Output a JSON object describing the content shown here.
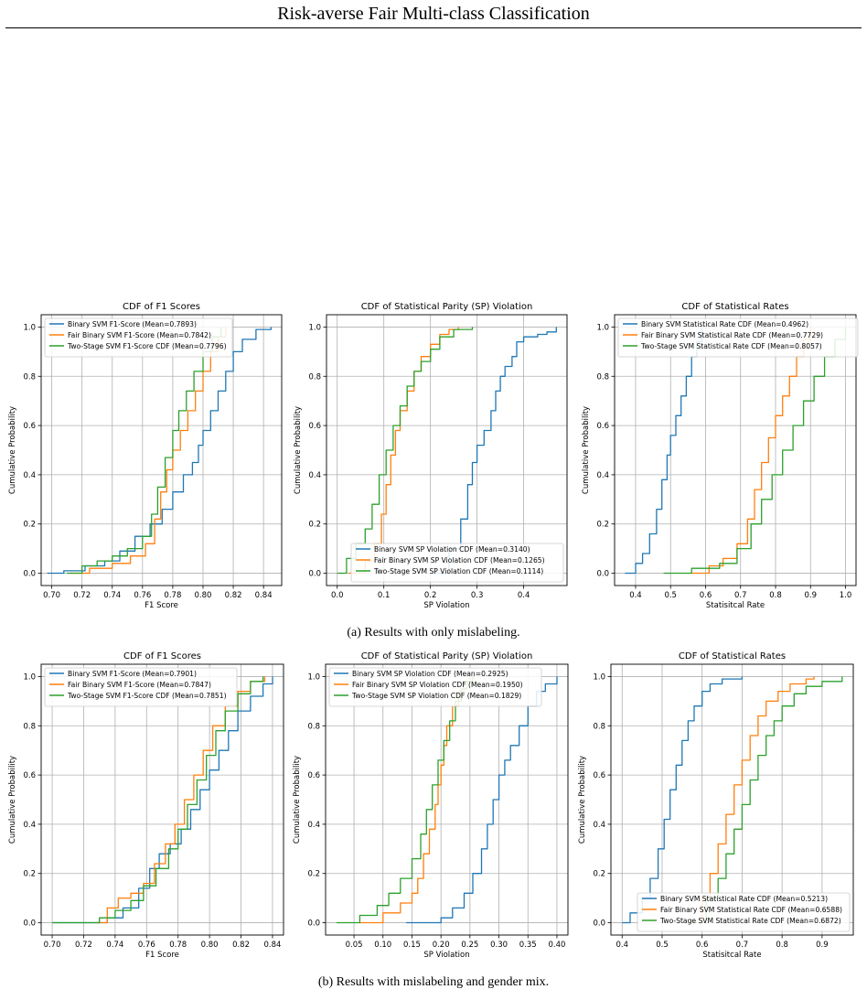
{
  "header": {
    "title": "Risk-averse Fair Multi-class Classification"
  },
  "captions": {
    "a": "(a) Results with only mislabeling.",
    "b": "(b) Results with mislabeling and gender mix."
  },
  "colors": {
    "blue": "#1f77b4",
    "orange": "#ff7f0e",
    "green": "#2ca02c",
    "grid": "#b0b0b0"
  },
  "chart_data": [
    {
      "type": "line",
      "title": "CDF of F1 Scores",
      "xlabel": "F1 Score",
      "ylabel": "Cumulative Probability",
      "xlim": [
        0.693,
        0.852
      ],
      "ylim": [
        -0.05,
        1.05
      ],
      "xticks": [
        0.7,
        0.72,
        0.74,
        0.76,
        0.78,
        0.8,
        0.82,
        0.84
      ],
      "xtick_labels": [
        "0.70",
        "0.72",
        "0.74",
        "0.76",
        "0.78",
        "0.80",
        "0.82",
        "0.84"
      ],
      "yticks": [
        0.0,
        0.2,
        0.4,
        0.6,
        0.8,
        1.0
      ],
      "ytick_labels": [
        "0.0",
        "0.2",
        "0.4",
        "0.6",
        "0.8",
        "1.0"
      ],
      "grid": true,
      "legend_position": "upper-left",
      "series": [
        {
          "name": "Binary SVM F1-Score (Mean=0.7893)",
          "color": "#1f77b4",
          "x": [
            0.697,
            0.708,
            0.722,
            0.735,
            0.745,
            0.755,
            0.765,
            0.773,
            0.78,
            0.787,
            0.793,
            0.797,
            0.8,
            0.805,
            0.81,
            0.815,
            0.82,
            0.826,
            0.835,
            0.845
          ],
          "y": [
            0.0,
            0.01,
            0.03,
            0.05,
            0.09,
            0.15,
            0.2,
            0.26,
            0.33,
            0.4,
            0.45,
            0.52,
            0.58,
            0.66,
            0.74,
            0.82,
            0.9,
            0.95,
            0.99,
            1.0
          ]
        },
        {
          "name": "Fair Binary SVM F1-Score (Mean=0.7842)",
          "color": "#ff7f0e",
          "x": [
            0.712,
            0.725,
            0.74,
            0.752,
            0.762,
            0.768,
            0.772,
            0.776,
            0.78,
            0.785,
            0.79,
            0.795,
            0.8,
            0.805,
            0.81,
            0.815
          ],
          "y": [
            0.0,
            0.02,
            0.04,
            0.07,
            0.12,
            0.22,
            0.33,
            0.42,
            0.5,
            0.58,
            0.66,
            0.74,
            0.82,
            0.9,
            0.96,
            1.0
          ]
        },
        {
          "name": "Two-Stage SVM F1-Score CDF (Mean=0.7796)",
          "color": "#2ca02c",
          "x": [
            0.71,
            0.72,
            0.73,
            0.74,
            0.75,
            0.76,
            0.766,
            0.77,
            0.775,
            0.78,
            0.784,
            0.789,
            0.794,
            0.8,
            0.806,
            0.812
          ],
          "y": [
            0.0,
            0.03,
            0.05,
            0.07,
            0.1,
            0.15,
            0.24,
            0.35,
            0.47,
            0.58,
            0.66,
            0.74,
            0.82,
            0.9,
            0.96,
            1.0
          ]
        }
      ]
    },
    {
      "type": "line",
      "title": "CDF of Statistical Parity (SP) Violation",
      "xlabel": "SP Violation",
      "ylabel": "Cumulative Probability",
      "xlim": [
        -0.023,
        0.493
      ],
      "ylim": [
        -0.05,
        1.05
      ],
      "xticks": [
        0.0,
        0.1,
        0.2,
        0.3,
        0.4
      ],
      "xtick_labels": [
        "0.0",
        "0.1",
        "0.2",
        "0.3",
        "0.4"
      ],
      "yticks": [
        0.0,
        0.2,
        0.4,
        0.6,
        0.8,
        1.0
      ],
      "ytick_labels": [
        "0.0",
        "0.2",
        "0.4",
        "0.6",
        "0.8",
        "1.0"
      ],
      "grid": true,
      "legend_position": "lower-right",
      "series": [
        {
          "name": "Binary SVM SP Violation CDF (Mean=0.3140)",
          "color": "#1f77b4",
          "x": [
            0.205,
            0.24,
            0.265,
            0.28,
            0.29,
            0.3,
            0.315,
            0.33,
            0.34,
            0.35,
            0.36,
            0.375,
            0.385,
            0.4,
            0.43,
            0.45,
            0.47
          ],
          "y": [
            0.0,
            0.1,
            0.22,
            0.36,
            0.45,
            0.52,
            0.58,
            0.66,
            0.74,
            0.8,
            0.84,
            0.88,
            0.94,
            0.96,
            0.97,
            0.98,
            1.0
          ]
        },
        {
          "name": "Fair Binary SVM SP Violation CDF (Mean=0.1265)",
          "color": "#ff7f0e",
          "x": [
            0.025,
            0.06,
            0.08,
            0.095,
            0.105,
            0.115,
            0.125,
            0.135,
            0.15,
            0.165,
            0.18,
            0.2,
            0.22,
            0.24,
            0.26
          ],
          "y": [
            0.0,
            0.05,
            0.12,
            0.24,
            0.36,
            0.48,
            0.58,
            0.66,
            0.74,
            0.82,
            0.88,
            0.93,
            0.97,
            0.99,
            1.0
          ]
        },
        {
          "name": "Two-Stage SVM SP Violation CDF (Mean=0.1114)",
          "color": "#2ca02c",
          "x": [
            0.0,
            0.02,
            0.04,
            0.06,
            0.075,
            0.09,
            0.105,
            0.12,
            0.135,
            0.15,
            0.165,
            0.18,
            0.2,
            0.22,
            0.25,
            0.29
          ],
          "y": [
            0.0,
            0.06,
            0.12,
            0.18,
            0.28,
            0.4,
            0.5,
            0.6,
            0.68,
            0.76,
            0.82,
            0.86,
            0.91,
            0.96,
            0.99,
            1.0
          ]
        }
      ]
    },
    {
      "type": "line",
      "title": "CDF of Statistical Rates",
      "xlabel": "Statisitcal Rate",
      "ylabel": "Cumulative Probability",
      "xlim": [
        0.34,
        1.03
      ],
      "ylim": [
        -0.05,
        1.05
      ],
      "xticks": [
        0.4,
        0.5,
        0.6,
        0.7,
        0.8,
        0.9,
        1.0
      ],
      "xtick_labels": [
        "0.4",
        "0.5",
        "0.6",
        "0.7",
        "0.8",
        "0.9",
        "1.0"
      ],
      "yticks": [
        0.0,
        0.2,
        0.4,
        0.6,
        0.8,
        1.0
      ],
      "ytick_labels": [
        "0.0",
        "0.2",
        "0.4",
        "0.6",
        "0.8",
        "1.0"
      ],
      "grid": true,
      "legend_position": "upper-left",
      "series": [
        {
          "name": "Binary SVM Statistical Rate CDF (Mean=0.4962)",
          "color": "#1f77b4",
          "x": [
            0.37,
            0.4,
            0.42,
            0.44,
            0.46,
            0.475,
            0.49,
            0.5,
            0.515,
            0.53,
            0.545,
            0.56,
            0.575,
            0.59
          ],
          "y": [
            0.0,
            0.04,
            0.08,
            0.16,
            0.26,
            0.38,
            0.48,
            0.56,
            0.64,
            0.72,
            0.8,
            0.88,
            0.94,
            1.0
          ]
        },
        {
          "name": "Fair Binary SVM Statistical Rate CDF (Mean=0.7729)",
          "color": "#ff7f0e",
          "x": [
            0.56,
            0.61,
            0.65,
            0.69,
            0.72,
            0.74,
            0.76,
            0.78,
            0.8,
            0.82,
            0.84,
            0.86,
            0.88,
            0.9
          ],
          "y": [
            0.0,
            0.03,
            0.06,
            0.12,
            0.22,
            0.34,
            0.45,
            0.55,
            0.64,
            0.72,
            0.8,
            0.88,
            0.95,
            1.0
          ]
        },
        {
          "name": "Two-Stage SVM Statistical Rate CDF (Mean=0.8057)",
          "color": "#2ca02c",
          "x": [
            0.48,
            0.56,
            0.64,
            0.69,
            0.73,
            0.76,
            0.79,
            0.82,
            0.85,
            0.88,
            0.91,
            0.94,
            0.97,
            1.0
          ],
          "y": [
            0.0,
            0.02,
            0.04,
            0.1,
            0.2,
            0.3,
            0.4,
            0.5,
            0.6,
            0.7,
            0.8,
            0.88,
            0.95,
            1.0
          ]
        }
      ]
    },
    {
      "type": "line",
      "title": "CDF of F1 Scores",
      "xlabel": "F1 Score",
      "ylabel": "Cumulative Probability",
      "xlim": [
        0.693,
        0.847
      ],
      "ylim": [
        -0.05,
        1.05
      ],
      "xticks": [
        0.7,
        0.72,
        0.74,
        0.76,
        0.78,
        0.8,
        0.82,
        0.84
      ],
      "xtick_labels": [
        "0.70",
        "0.72",
        "0.74",
        "0.76",
        "0.78",
        "0.80",
        "0.82",
        "0.84"
      ],
      "yticks": [
        0.0,
        0.2,
        0.4,
        0.6,
        0.8,
        1.0
      ],
      "ytick_labels": [
        "0.0",
        "0.2",
        "0.4",
        "0.6",
        "0.8",
        "1.0"
      ],
      "grid": true,
      "legend_position": "upper-left",
      "series": [
        {
          "name": "Binary SVM F1-Score (Mean=0.7901)",
          "color": "#1f77b4",
          "x": [
            0.7,
            0.735,
            0.745,
            0.755,
            0.762,
            0.768,
            0.775,
            0.782,
            0.788,
            0.794,
            0.8,
            0.806,
            0.812,
            0.818,
            0.826,
            0.834,
            0.84
          ],
          "y": [
            0.0,
            0.02,
            0.06,
            0.14,
            0.22,
            0.28,
            0.32,
            0.38,
            0.46,
            0.54,
            0.62,
            0.7,
            0.78,
            0.86,
            0.92,
            0.97,
            1.0
          ]
        },
        {
          "name": "Fair Binary SVM F1-Score (Mean=0.7847)",
          "color": "#ff7f0e",
          "x": [
            0.728,
            0.735,
            0.742,
            0.75,
            0.758,
            0.765,
            0.772,
            0.778,
            0.784,
            0.79,
            0.796,
            0.802,
            0.81,
            0.818,
            0.826,
            0.835
          ],
          "y": [
            0.0,
            0.06,
            0.1,
            0.12,
            0.16,
            0.24,
            0.32,
            0.4,
            0.5,
            0.6,
            0.7,
            0.8,
            0.88,
            0.94,
            0.98,
            1.0
          ]
        },
        {
          "name": "Two-Stage SVM F1-Score CDF (Mean=0.7851)",
          "color": "#2ca02c",
          "x": [
            0.7,
            0.73,
            0.74,
            0.75,
            0.758,
            0.766,
            0.774,
            0.78,
            0.786,
            0.792,
            0.798,
            0.804,
            0.81,
            0.818,
            0.826,
            0.834
          ],
          "y": [
            0.0,
            0.02,
            0.05,
            0.09,
            0.15,
            0.22,
            0.3,
            0.38,
            0.48,
            0.58,
            0.68,
            0.78,
            0.86,
            0.93,
            0.98,
            1.0
          ]
        }
      ]
    },
    {
      "type": "line",
      "title": "CDF of Statistical Parity (SP) Violation",
      "xlabel": "SP Violation",
      "ylabel": "Cumulative Probability",
      "xlim": [
        0.001,
        0.419
      ],
      "ylim": [
        -0.05,
        1.05
      ],
      "xticks": [
        0.05,
        0.1,
        0.15,
        0.2,
        0.25,
        0.3,
        0.35,
        0.4
      ],
      "xtick_labels": [
        "0.05",
        "0.10",
        "0.15",
        "0.20",
        "0.25",
        "0.30",
        "0.35",
        "0.40"
      ],
      "yticks": [
        0.0,
        0.2,
        0.4,
        0.6,
        0.8,
        1.0
      ],
      "ytick_labels": [
        "0.0",
        "0.2",
        "0.4",
        "0.6",
        "0.8",
        "1.0"
      ],
      "grid": true,
      "legend_position": "upper-left",
      "series": [
        {
          "name": "Binary SVM SP Violation CDF (Mean=0.2925)",
          "color": "#1f77b4",
          "x": [
            0.14,
            0.2,
            0.22,
            0.24,
            0.255,
            0.27,
            0.28,
            0.29,
            0.3,
            0.31,
            0.32,
            0.335,
            0.35,
            0.365,
            0.38,
            0.4
          ],
          "y": [
            0.0,
            0.02,
            0.06,
            0.12,
            0.2,
            0.3,
            0.4,
            0.5,
            0.6,
            0.66,
            0.72,
            0.8,
            0.88,
            0.94,
            0.97,
            1.0
          ]
        },
        {
          "name": "Fair Binary SVM SP Violation CDF (Mean=0.1950)",
          "color": "#ff7f0e",
          "x": [
            0.06,
            0.1,
            0.13,
            0.15,
            0.16,
            0.17,
            0.18,
            0.19,
            0.195,
            0.2,
            0.205,
            0.21,
            0.22,
            0.23,
            0.24,
            0.25
          ],
          "y": [
            0.0,
            0.04,
            0.08,
            0.12,
            0.18,
            0.28,
            0.38,
            0.48,
            0.56,
            0.64,
            0.72,
            0.8,
            0.88,
            0.94,
            0.98,
            1.0
          ]
        },
        {
          "name": "Two-Stage SVM SP Violation CDF (Mean=0.1829)",
          "color": "#2ca02c",
          "x": [
            0.02,
            0.06,
            0.09,
            0.11,
            0.13,
            0.15,
            0.165,
            0.175,
            0.185,
            0.195,
            0.205,
            0.215,
            0.225,
            0.235,
            0.245,
            0.255
          ],
          "y": [
            0.0,
            0.03,
            0.07,
            0.12,
            0.18,
            0.26,
            0.36,
            0.46,
            0.56,
            0.66,
            0.74,
            0.82,
            0.9,
            0.95,
            0.98,
            1.0
          ]
        }
      ]
    },
    {
      "type": "line",
      "title": "CDF of Statistical Rates",
      "xlabel": "Statisitcal Rate",
      "ylabel": "Cumulative Probability",
      "xlim": [
        0.372,
        0.978
      ],
      "ylim": [
        -0.05,
        1.05
      ],
      "xticks": [
        0.4,
        0.5,
        0.6,
        0.7,
        0.8,
        0.9
      ],
      "xtick_labels": [
        "0.4",
        "0.5",
        "0.6",
        "0.7",
        "0.8",
        "0.9"
      ],
      "yticks": [
        0.0,
        0.2,
        0.4,
        0.6,
        0.8,
        1.0
      ],
      "ytick_labels": [
        "0.0",
        "0.2",
        "0.4",
        "0.6",
        "0.8",
        "1.0"
      ],
      "grid": true,
      "legend_position": "lower-right",
      "series": [
        {
          "name": "Binary SVM Statistical Rate CDF (Mean=0.5213)",
          "color": "#1f77b4",
          "x": [
            0.4,
            0.42,
            0.45,
            0.47,
            0.49,
            0.505,
            0.52,
            0.535,
            0.55,
            0.565,
            0.58,
            0.6,
            0.62,
            0.65,
            0.7
          ],
          "y": [
            0.0,
            0.04,
            0.1,
            0.18,
            0.3,
            0.42,
            0.54,
            0.64,
            0.74,
            0.82,
            0.88,
            0.94,
            0.97,
            0.99,
            1.0
          ]
        },
        {
          "name": "Fair Binary SVM Statistical Rate CDF (Mean=0.6588)",
          "color": "#ff7f0e",
          "x": [
            0.58,
            0.6,
            0.62,
            0.64,
            0.66,
            0.68,
            0.7,
            0.72,
            0.74,
            0.76,
            0.79,
            0.82,
            0.86,
            0.88
          ],
          "y": [
            0.0,
            0.1,
            0.2,
            0.32,
            0.44,
            0.56,
            0.66,
            0.76,
            0.84,
            0.9,
            0.94,
            0.97,
            0.99,
            1.0
          ]
        },
        {
          "name": "Two-Stage SVM Statistical Rate CDF (Mean=0.6872)",
          "color": "#2ca02c",
          "x": [
            0.59,
            0.61,
            0.64,
            0.66,
            0.68,
            0.7,
            0.72,
            0.74,
            0.76,
            0.78,
            0.8,
            0.83,
            0.86,
            0.9,
            0.95
          ],
          "y": [
            0.0,
            0.1,
            0.18,
            0.28,
            0.38,
            0.48,
            0.58,
            0.68,
            0.76,
            0.82,
            0.88,
            0.93,
            0.96,
            0.98,
            1.0
          ]
        }
      ]
    }
  ]
}
